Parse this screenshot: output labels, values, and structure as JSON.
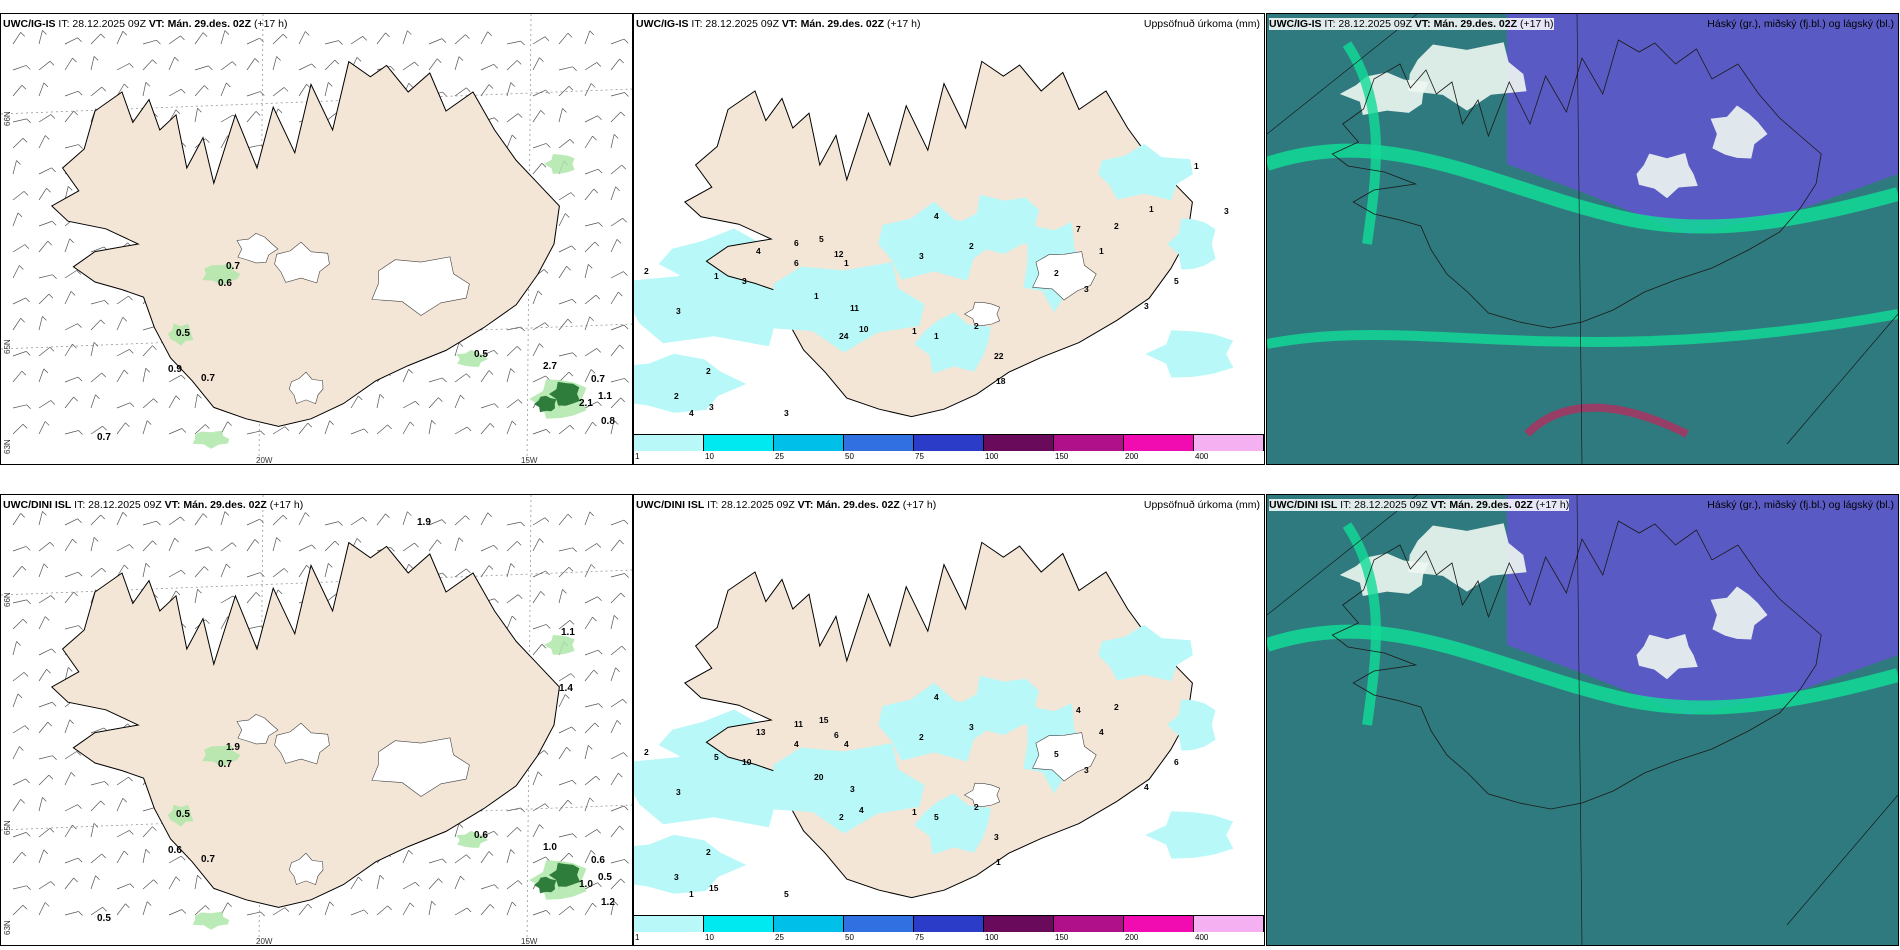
{
  "panels": [
    {
      "kind": "wind",
      "model": "UWC/IG-IS",
      "it": "28.12.2025 09Z",
      "vt": "Mán. 29.des. 02Z",
      "lead": "(+17 h)",
      "right_title": "",
      "axes": {
        "x1": "20W",
        "x2": "15W",
        "y1": "66N",
        "y2": "65N",
        "y3": "63N"
      },
      "values": [
        "0.7",
        "0.6",
        "0.5",
        "0.9",
        "0.7",
        "0.5",
        "2.7",
        "0.7",
        "1.1",
        "2.1",
        "0.8",
        "0.7"
      ]
    },
    {
      "kind": "precip",
      "model": "UWC/IG-IS",
      "it": "28.12.2025 09Z",
      "vt": "Mán. 29.des. 02Z",
      "lead": "(+17 h)",
      "right_title": "Uppsöfnuð úrkoma (mm)",
      "values": [
        "2",
        "3",
        "1",
        "3",
        "6",
        "4",
        "12",
        "6",
        "2",
        "2",
        "3",
        "4",
        "3",
        "1",
        "5",
        "1",
        "24",
        "11",
        "10",
        "3",
        "4",
        "2",
        "2",
        "1",
        "22",
        "18",
        "1",
        "7",
        "2",
        "1",
        "3",
        "2",
        "3",
        "5",
        "1",
        "1",
        "3"
      ]
    },
    {
      "kind": "cloud",
      "model": "UWC/IG-IS",
      "it": "28.12.2025 09Z",
      "vt": "Mán. 29.des. 02Z",
      "lead": "(+17 h)",
      "right_title": "Háský (gr.), miðský (fj.bl.) og lágský (bl.)"
    },
    {
      "kind": "wind",
      "model": "UWC/DINI ISL",
      "it": "28.12.2025 09Z",
      "vt": "Mán. 29.des. 02Z",
      "lead": "(+17 h)",
      "right_title": "",
      "axes": {
        "x1": "20W",
        "x2": "15W",
        "y1": "66N",
        "y2": "65N",
        "y3": "63N"
      },
      "values": [
        "1.9",
        "0.7",
        "0.5",
        "0.6",
        "0.7",
        "0.6",
        "1.0",
        "0.6",
        "0.5",
        "1.0",
        "1.2",
        "0.5",
        "1.9",
        "1.1",
        "1.4"
      ]
    },
    {
      "kind": "precip",
      "model": "UWC/DINI ISL",
      "it": "28.12.2025 09Z",
      "vt": "Mán. 29.des. 02Z",
      "lead": "(+17 h)",
      "right_title": "Uppsöfnuð úrkoma (mm)",
      "values": [
        "2",
        "3",
        "5",
        "10",
        "11",
        "13",
        "6",
        "4",
        "3",
        "2",
        "5",
        "1",
        "15",
        "20",
        "15",
        "4",
        "2",
        "3",
        "4",
        "2",
        "4",
        "3",
        "2",
        "5",
        "3",
        "1",
        "1",
        "4",
        "5",
        "4",
        "3",
        "2",
        "4",
        "6"
      ]
    },
    {
      "kind": "cloud",
      "model": "UWC/DINI ISL",
      "it": "28.12.2025 09Z",
      "vt": "Mán. 29.des. 02Z",
      "lead": "(+17 h)",
      "right_title": "Háský (gr.), miðský (fj.bl.) og lágský (bl.)"
    }
  ],
  "precip_legend": {
    "labels": [
      "1",
      "10",
      "25",
      "50",
      "75",
      "100",
      "150",
      "200",
      "400"
    ],
    "colors": [
      "#b8f8f8",
      "#00e8f0",
      "#00c0ea",
      "#3070e0",
      "#2a3cc8",
      "#6a0a5a",
      "#b0108a",
      "#f00cb0",
      "#f4b0f0"
    ]
  },
  "colors": {
    "land": "#f4e6d6",
    "precip_light": "#b8f8f8",
    "cloud_low": "#2f7a7e",
    "cloud_mid": "#5d58c8",
    "cloud_high": "#10dc96"
  }
}
